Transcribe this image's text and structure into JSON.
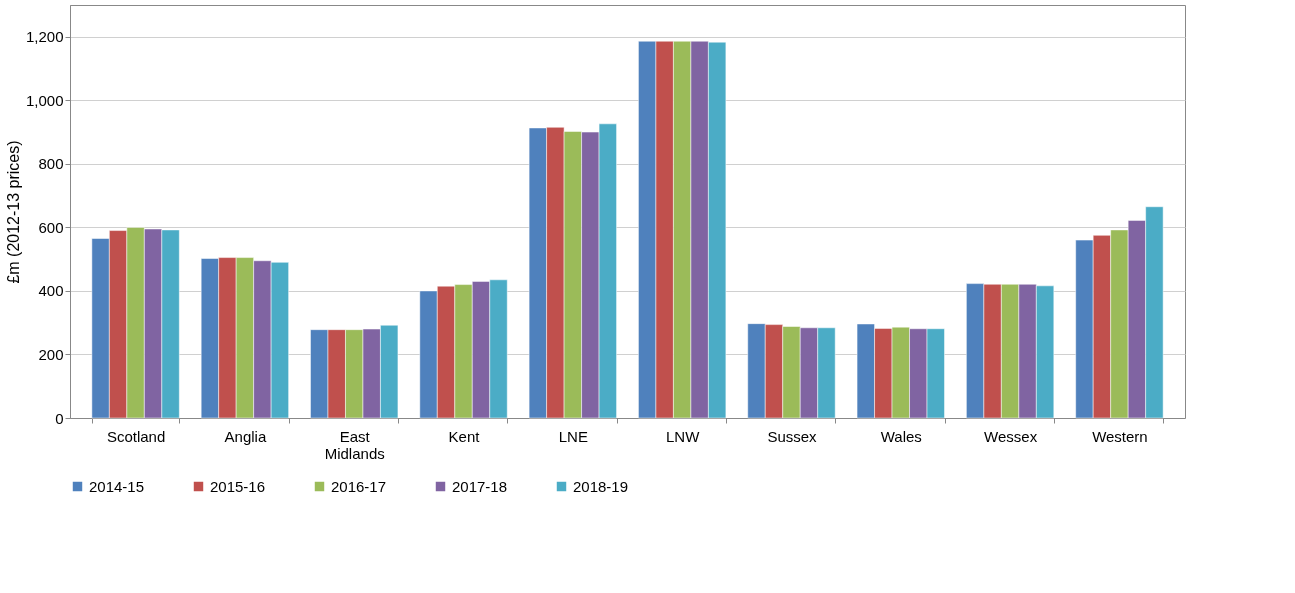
{
  "chart_data": {
    "type": "bar",
    "ylabel": "£m (2012-13 prices)",
    "categories": [
      "Scotland",
      "Anglia",
      "East Midlands",
      "Kent",
      "LNE",
      "LNW",
      "Sussex",
      "Wales",
      "Wessex",
      "Western"
    ],
    "series": [
      {
        "name": "2014-15",
        "color": "#4f81bd",
        "values": [
          565,
          502,
          278,
          400,
          913,
          1186,
          297,
          296,
          423,
          560
        ]
      },
      {
        "name": "2015-16",
        "color": "#c0504d",
        "values": [
          590,
          505,
          278,
          415,
          915,
          1186,
          294,
          282,
          421,
          575
        ]
      },
      {
        "name": "2016-17",
        "color": "#9bbb59",
        "values": [
          600,
          505,
          278,
          420,
          902,
          1186,
          288,
          286,
          421,
          592
        ]
      },
      {
        "name": "2017-18",
        "color": "#8064a2",
        "values": [
          595,
          495,
          280,
          430,
          900,
          1186,
          284,
          281,
          421,
          622
        ]
      },
      {
        "name": "2018-19",
        "color": "#4bacc6",
        "values": [
          592,
          490,
          292,
          435,
          926,
          1183,
          284,
          281,
          416,
          665
        ]
      }
    ],
    "ylim": [
      0,
      1300
    ],
    "yticks": [
      0,
      {
        "value": 200,
        "label": "200"
      },
      400,
      600,
      800,
      {
        "value": 1000,
        "label": "1,000"
      },
      {
        "value": 1200,
        "label": "1,200"
      }
    ],
    "grid": "y",
    "legend": "bottom"
  }
}
